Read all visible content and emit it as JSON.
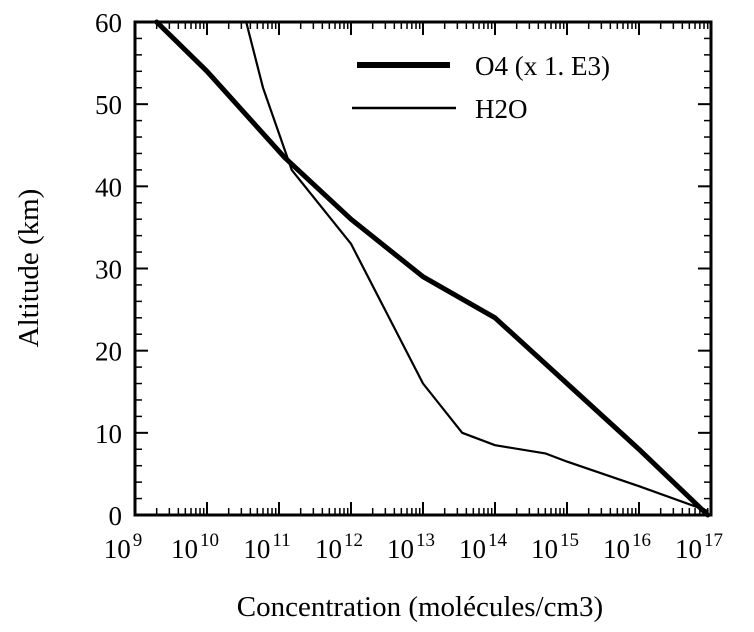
{
  "chart_data": {
    "type": "line",
    "title": "",
    "xlabel": "Concentration (molécules/cm3)",
    "ylabel": "Altitude (km)",
    "xscale": "log",
    "xlim": [
      1000000000.0,
      1e+17
    ],
    "ylim": [
      0,
      60
    ],
    "x_ticks": [
      {
        "base": "10",
        "exp": "9",
        "value": 1000000000.0
      },
      {
        "base": "10",
        "exp": "10",
        "value": 10000000000.0
      },
      {
        "base": "10",
        "exp": "11",
        "value": 100000000000.0
      },
      {
        "base": "10",
        "exp": "12",
        "value": 1000000000000.0
      },
      {
        "base": "10",
        "exp": "13",
        "value": 10000000000000.0
      },
      {
        "base": "10",
        "exp": "14",
        "value": 100000000000000.0
      },
      {
        "base": "10",
        "exp": "15",
        "value": 1000000000000000.0
      },
      {
        "base": "10",
        "exp": "16",
        "value": 1e+16
      },
      {
        "base": "10",
        "exp": "17",
        "value": 1e+17
      }
    ],
    "y_ticks": [
      "0",
      "10",
      "20",
      "30",
      "40",
      "50",
      "60"
    ],
    "legend_position": "top-right",
    "grid": false,
    "series": [
      {
        "name": "O4 (x 1. E3)",
        "color": "#000000",
        "line_style": "thick",
        "points": [
          {
            "x": 2000000000.0,
            "y": 60
          },
          {
            "x": 10000000000.0,
            "y": 54
          },
          {
            "x": 120000000000.0,
            "y": 43.5
          },
          {
            "x": 1000000000000.0,
            "y": 36
          },
          {
            "x": 10000000000000.0,
            "y": 29
          },
          {
            "x": 100000000000000.0,
            "y": 24
          },
          {
            "x": 1000000000000000.0,
            "y": 16
          },
          {
            "x": 1e+16,
            "y": 8
          },
          {
            "x": 9e+16,
            "y": 0
          }
        ]
      },
      {
        "name": "H2O",
        "color": "#000000",
        "line_style": "thin",
        "points": [
          {
            "x": 35000000000.0,
            "y": 60
          },
          {
            "x": 60000000000.0,
            "y": 52
          },
          {
            "x": 150000000000.0,
            "y": 42
          },
          {
            "x": 1000000000000.0,
            "y": 33
          },
          {
            "x": 10000000000000.0,
            "y": 16
          },
          {
            "x": 35000000000000.0,
            "y": 10
          },
          {
            "x": 100000000000000.0,
            "y": 8.5
          },
          {
            "x": 500000000000000.0,
            "y": 7.5
          },
          {
            "x": 1000000000000000.0,
            "y": 6.5
          },
          {
            "x": 1e+16,
            "y": 3.5
          },
          {
            "x": 9e+16,
            "y": 0.5
          }
        ]
      }
    ]
  }
}
